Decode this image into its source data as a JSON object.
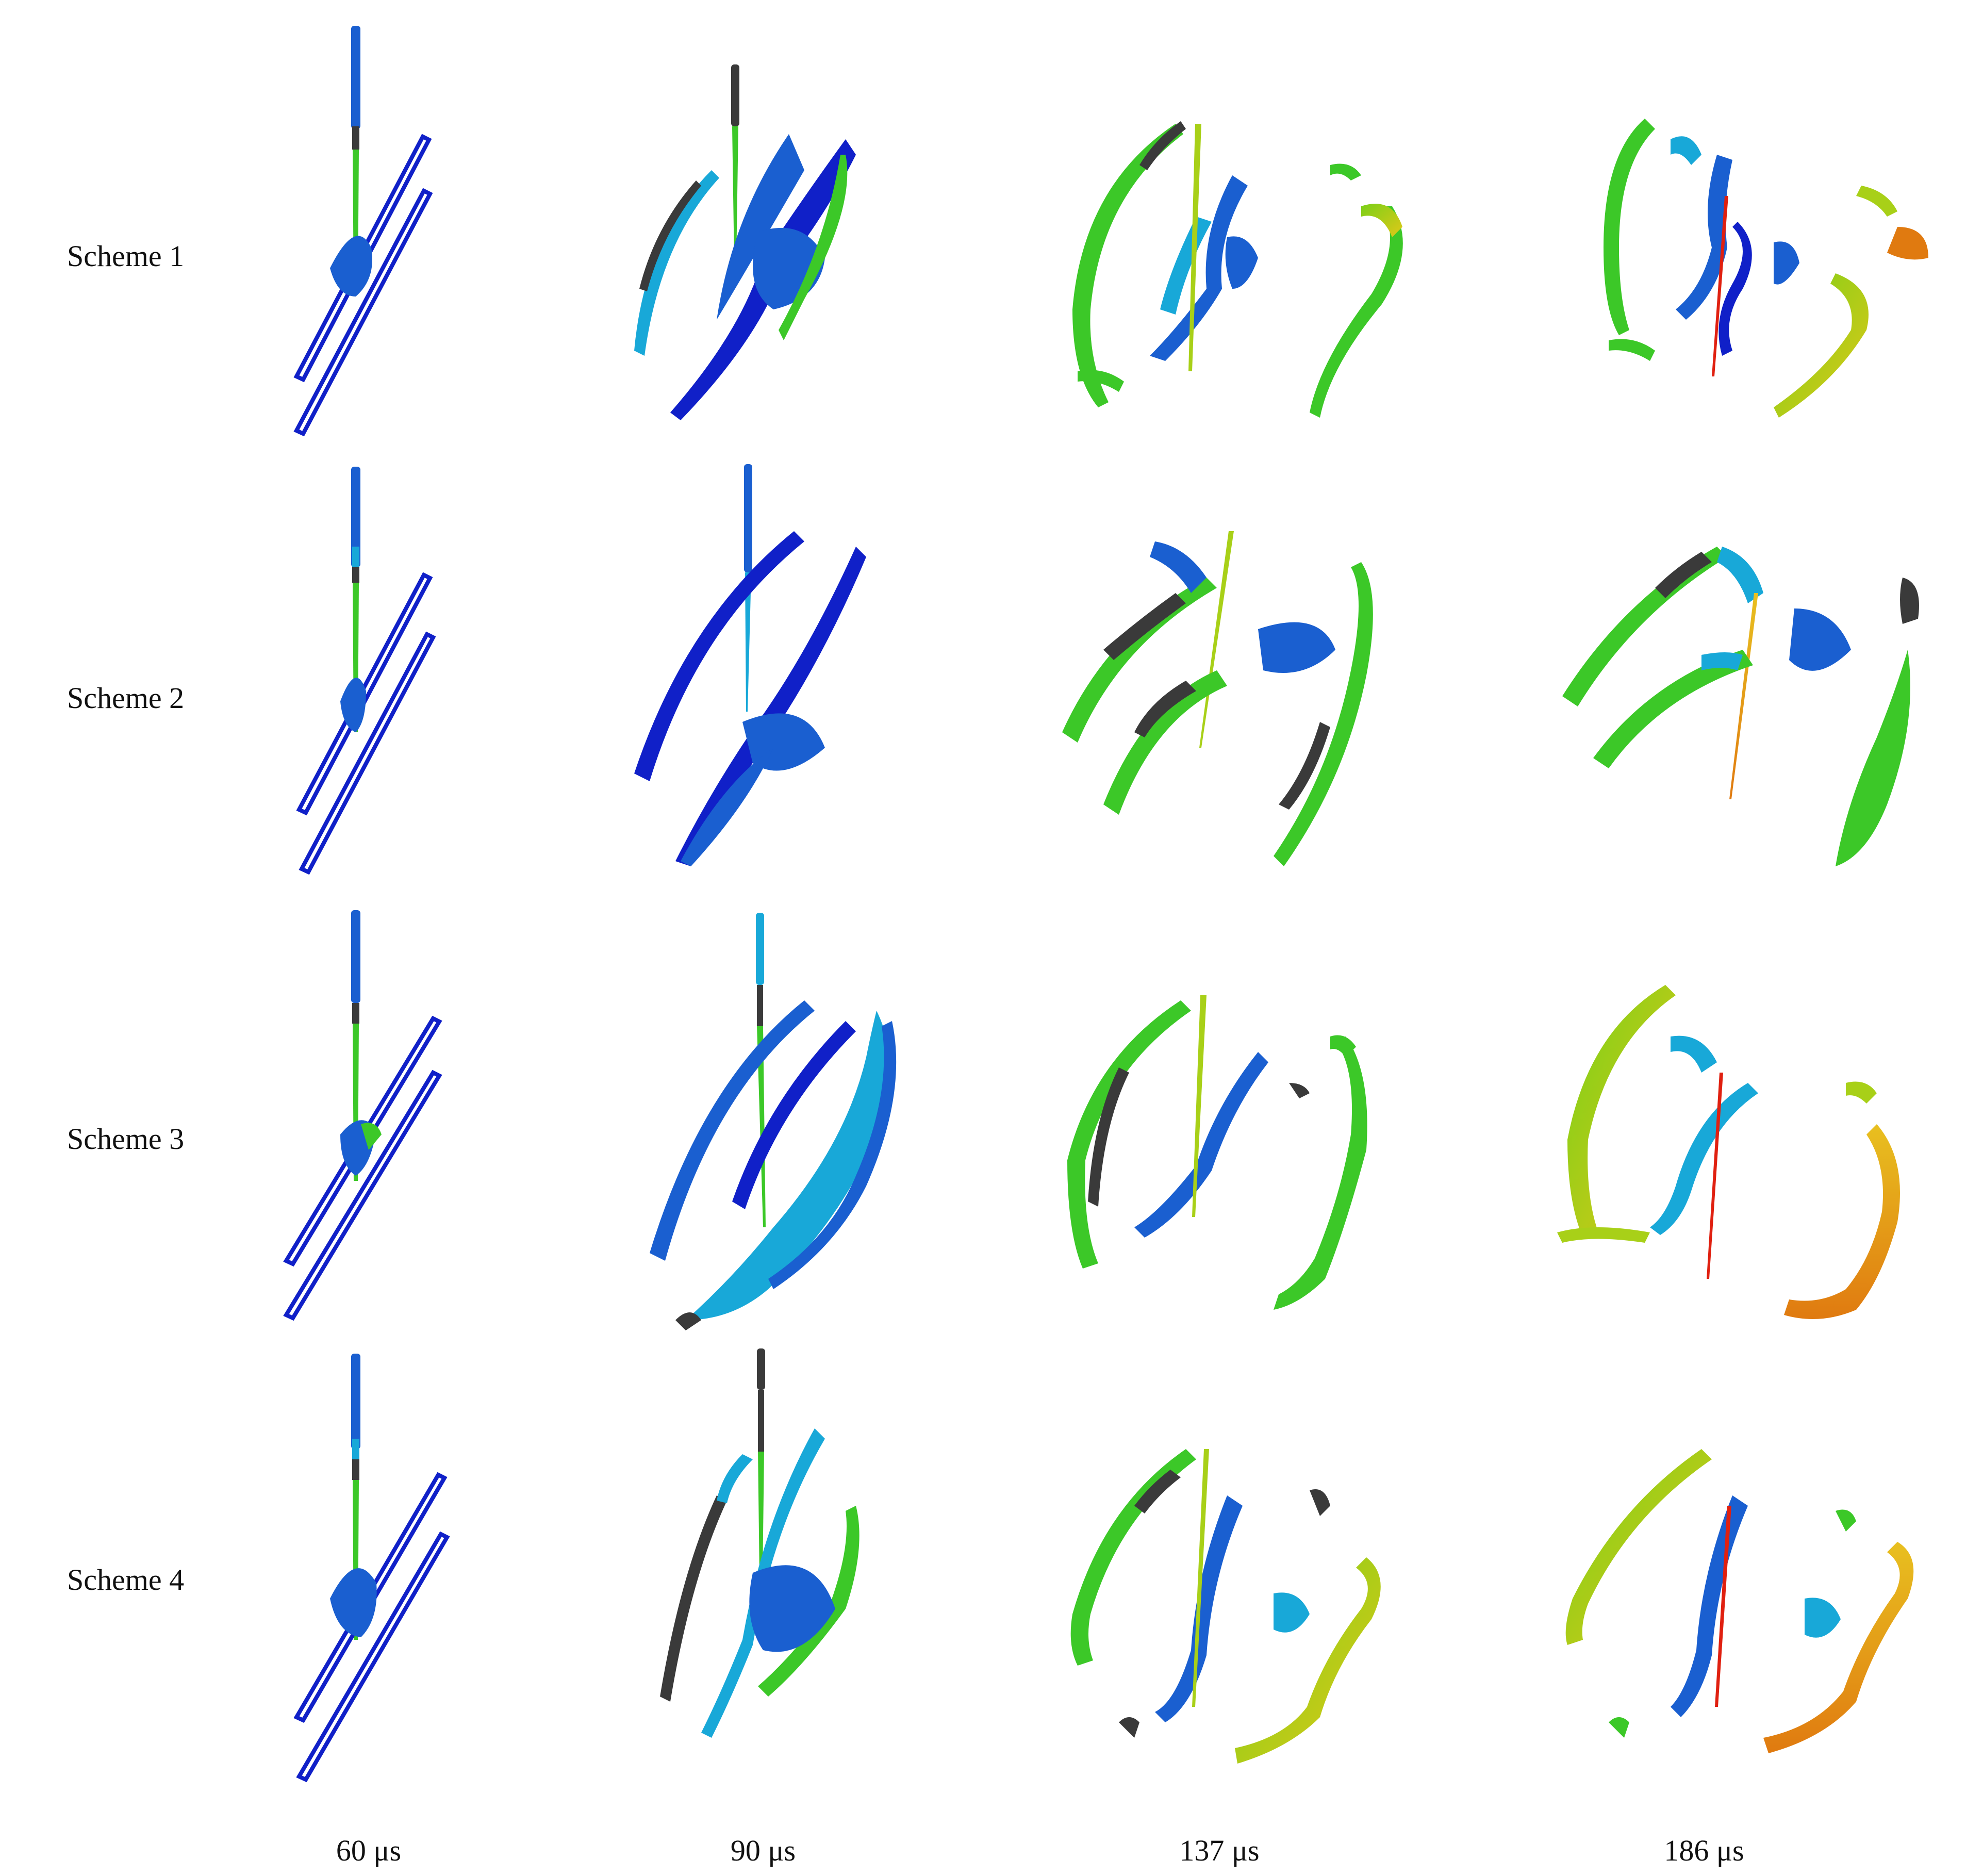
{
  "rows": [
    {
      "label": "Scheme 1"
    },
    {
      "label": "Scheme 2"
    },
    {
      "label": "Scheme 3"
    },
    {
      "label": "Scheme 4"
    }
  ],
  "columns": [
    {
      "label": "60 μs"
    },
    {
      "label": "90 μs"
    },
    {
      "label": "137 μs"
    },
    {
      "label": "186 μs"
    }
  ],
  "palette": {
    "deep_blue": "#1020c8",
    "blue": "#1a5fd0",
    "cyan": "#18a8d8",
    "green": "#3cc828",
    "yellow_green": "#a8d018",
    "yellow": "#e0c818",
    "orange": "#e07a10",
    "red": "#e02010",
    "dark_gray": "#3a3a3a"
  }
}
